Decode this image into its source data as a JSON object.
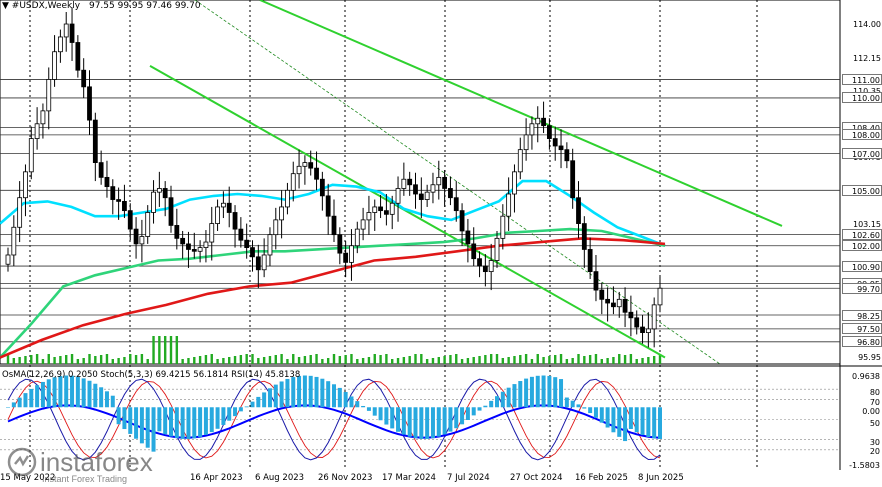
{
  "header": {
    "menu_icon": "triangle-down-icon",
    "symbol": "#USDX,Weekly",
    "ohlc": "97.55 99.95 97.46 99.70"
  },
  "price_axis": {
    "scale": [
      "114.00",
      "112.15",
      "110.35",
      "108.40",
      "106.75",
      "105.00",
      "103.15",
      "101.85",
      "99.95",
      "98.25",
      "96.80",
      "95.95"
    ],
    "levels": [
      "111.00",
      "110.00",
      "108.40",
      "108.00",
      "107.00",
      "105.00",
      "102.60",
      "102.00",
      "100.90",
      "99.95",
      "99.70",
      "98.25",
      "97.50",
      "96.80"
    ]
  },
  "time_axis": [
    "15 May 2022",
    "16 Apr 2023",
    "6 Aug 2023",
    "26 Nov 2023",
    "17 Mar 2024",
    "7 Jul 2024",
    "27 Oct 2024",
    "16 Feb 2025",
    "8 Jun 2025"
  ],
  "indicator": {
    "title": "OsMA(12,26,9) 0.2050   Stoch(5,3,3) 69.4215 56.1814   RSI(14) 45.8138",
    "axis_labels": [
      "0.9638",
      "80",
      "70",
      "0.00",
      "50",
      "30",
      "20",
      "-1.5803"
    ]
  },
  "watermark": {
    "brand": "instaforex",
    "tagline": "Instant Forex Trading"
  },
  "colors": {
    "bull_candle": "#ffffff",
    "bear_candle": "#000000",
    "ma_fast": "#00e0ff",
    "ma_mid": "#2fd47a",
    "ma_slow": "#e01818",
    "channel": "#2fd12f",
    "osma": "#27a9df",
    "stoch_main": "#1a1aa8",
    "stoch_signal": "#e01818",
    "rsi": "#0000ff",
    "volume": "#22aa22"
  },
  "chart_data": {
    "type": "candlestick",
    "title": "#USDX,Weekly",
    "current_ohlc": {
      "open": 97.55,
      "high": 99.95,
      "low": 97.46,
      "close": 99.7
    },
    "y_range": [
      95.6,
      115.3
    ],
    "closes": [
      101.5,
      103,
      104.6,
      106,
      107.8,
      108.6,
      109.3,
      111,
      112.5,
      113.3,
      114,
      113,
      111.5,
      110.6,
      108.8,
      106.5,
      105.7,
      105.2,
      104.5,
      104.4,
      103.9,
      102.9,
      102.1,
      102.5,
      103.8,
      104.9,
      105.1,
      104.6,
      103.1,
      102.4,
      102.1,
      101.8,
      101.7,
      101.9,
      102.2,
      103.2,
      104.1,
      104.3,
      103.8,
      102.9,
      102.3,
      101.9,
      101.4,
      100.7,
      101.5,
      102.6,
      103.4,
      104.1,
      105,
      105.9,
      106.3,
      106.5,
      106.2,
      105.6,
      104.7,
      103.6,
      102.6,
      101.6,
      101.1,
      102,
      102.9,
      103.4,
      103.8,
      104.1,
      103.9,
      103.7,
      104.3,
      105.1,
      105.6,
      105.3,
      104.8,
      104.5,
      104.9,
      105.3,
      105.7,
      105.1,
      104.6,
      103.9,
      102.8,
      102.1,
      101.3,
      100.9,
      100.6,
      101.2,
      102.4,
      103.6,
      104.8,
      106,
      107.2,
      108,
      108.6,
      108.9,
      108.5,
      107.8,
      107.4,
      107.2,
      106.6,
      104.6,
      103.2,
      101.8,
      100.6,
      99.6,
      99.1,
      98.9,
      98.7,
      99.1,
      98.4,
      98.1,
      97.6,
      97.3,
      97.5,
      98.8,
      99.7
    ],
    "moving_averages": {
      "fast_ma": [
        103.2,
        104.3,
        104.4,
        104.1,
        103.6,
        103.6,
        103.8,
        104,
        104.5,
        104.7,
        104.8,
        104.7,
        104.5,
        104.8,
        105.3,
        105.2,
        104.9,
        104,
        103.6,
        103.4,
        103.9,
        104.4,
        105.5,
        105.5,
        104.7,
        103.8,
        103,
        102.5,
        102
      ],
      "mid_ma": [
        95.95,
        97.8,
        99.8,
        100.4,
        100.8,
        101.2,
        101.3,
        101.5,
        101.7,
        101.7,
        101.8,
        101.9,
        102,
        102.1,
        102.2,
        102.4,
        102.7,
        102.8,
        102.9,
        102.8,
        102.4,
        102
      ],
      "slow_ma": [
        95.95,
        96.9,
        97.7,
        98.3,
        98.8,
        99.4,
        99.8,
        100,
        100.6,
        101.2,
        101.4,
        101.7,
        102,
        102.2,
        102.4,
        102.3,
        102.1
      ]
    },
    "channel_top": [
      115.3,
      98.2
    ],
    "channel_bottom": [
      109.3,
      95.95
    ],
    "indicator_axes": {
      "osma": [
        -1.5803,
        0.9638
      ],
      "oscillator": [
        20,
        80
      ]
    }
  }
}
